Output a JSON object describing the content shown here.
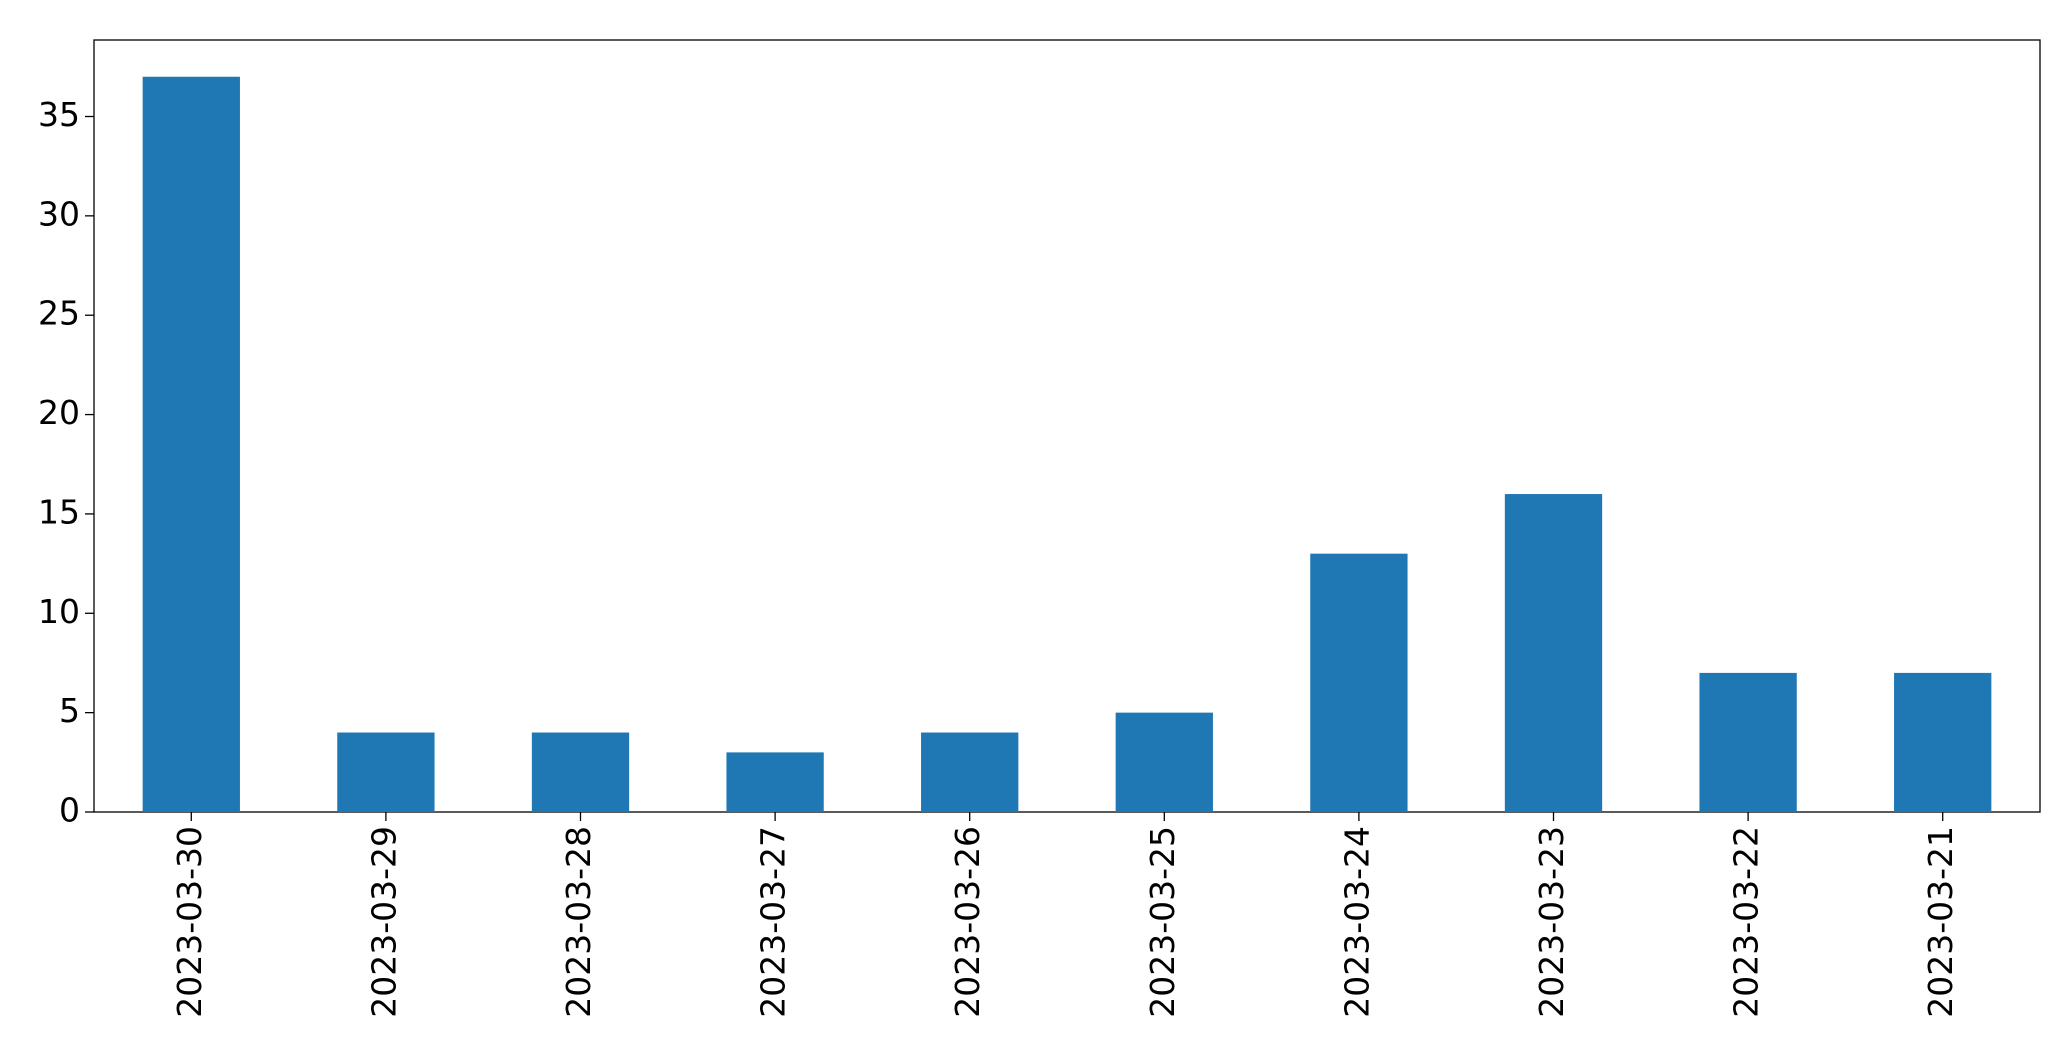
{
  "chart_data": {
    "type": "bar",
    "categories": [
      "2023-03-30",
      "2023-03-29",
      "2023-03-28",
      "2023-03-27",
      "2023-03-26",
      "2023-03-25",
      "2023-03-24",
      "2023-03-23",
      "2023-03-22",
      "2023-03-21"
    ],
    "values": [
      37,
      4,
      4,
      3,
      4,
      5,
      13,
      16,
      7,
      7
    ],
    "color": "#1f77b4",
    "ylim": [
      0,
      38.85
    ],
    "yticks": [
      0,
      5,
      10,
      15,
      20,
      25,
      30,
      35
    ],
    "grid": false
  }
}
